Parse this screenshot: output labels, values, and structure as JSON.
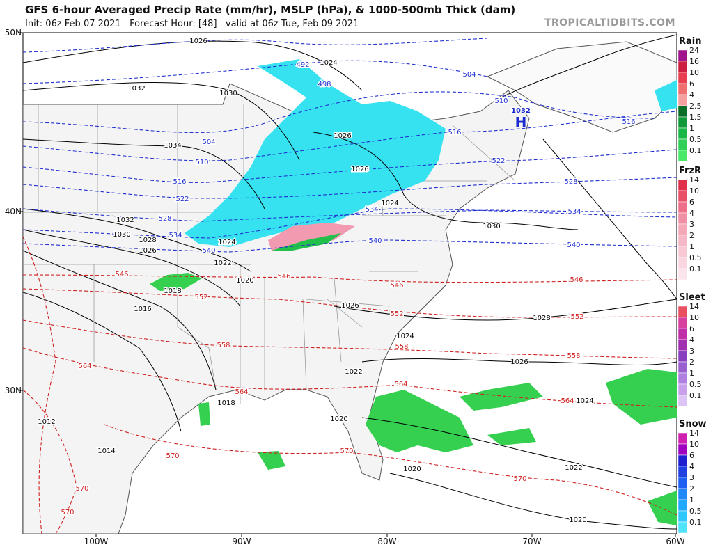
{
  "header": {
    "title": "GFS 6-hour Averaged Precip Rate (mm/hr), MSLP (hPa), & 1000-500mb Thick (dam)",
    "subtitle": "Init: 06z Feb 07 2021   Forecast Hour: [48]   valid at 06z Tue, Feb 09 2021",
    "source": "TROPICALTIDBITS.COM"
  },
  "axes": {
    "lat_labels": [
      "50N",
      "40N",
      "30N"
    ],
    "lon_labels": [
      "100W",
      "90W",
      "80W",
      "70W",
      "60W"
    ]
  },
  "legends": [
    {
      "title": "Rain",
      "labels": [
        "24",
        "16",
        "10",
        "6",
        "4",
        "2.5",
        "1.5",
        "1",
        "0.5",
        "0.1"
      ]
    },
    {
      "title": "FrzR",
      "labels": [
        "14",
        "10",
        "6",
        "4",
        "3",
        "2",
        "1",
        "0.5",
        "0.1"
      ]
    },
    {
      "title": "Sleet",
      "labels": [
        "14",
        "10",
        "6",
        "4",
        "3",
        "2",
        "1",
        "0.5",
        "0.1"
      ]
    },
    {
      "title": "Snow",
      "labels": [
        "14",
        "10",
        "6",
        "4",
        "3",
        "2",
        "1",
        "0.5",
        "0.1"
      ]
    }
  ],
  "high": {
    "value": "1032",
    "letter": "H"
  },
  "contour_labels": {
    "mslp": [
      "1026",
      "1032",
      "1030",
      "1034",
      "1032",
      "1030",
      "1028",
      "1026",
      "1024",
      "1022",
      "1020",
      "1018",
      "1016",
      "1026",
      "1026",
      "1024",
      "1030",
      "1026",
      "1024",
      "1022",
      "1028",
      "1026",
      "1024",
      "1022",
      "1020",
      "1020",
      "1018",
      "1012",
      "1014",
      "1020",
      "1024"
    ],
    "thickness_cold": [
      "492",
      "498",
      "504",
      "510",
      "504",
      "510",
      "516",
      "516",
      "522",
      "522",
      "528",
      "528",
      "534",
      "534",
      "534",
      "540",
      "540",
      "540",
      "516"
    ],
    "thickness_warm": [
      "546",
      "546",
      "546",
      "546",
      "552",
      "552",
      "552",
      "558",
      "558",
      "558",
      "564",
      "564",
      "564",
      "564",
      "570",
      "570",
      "570",
      "570",
      "570"
    ]
  }
}
